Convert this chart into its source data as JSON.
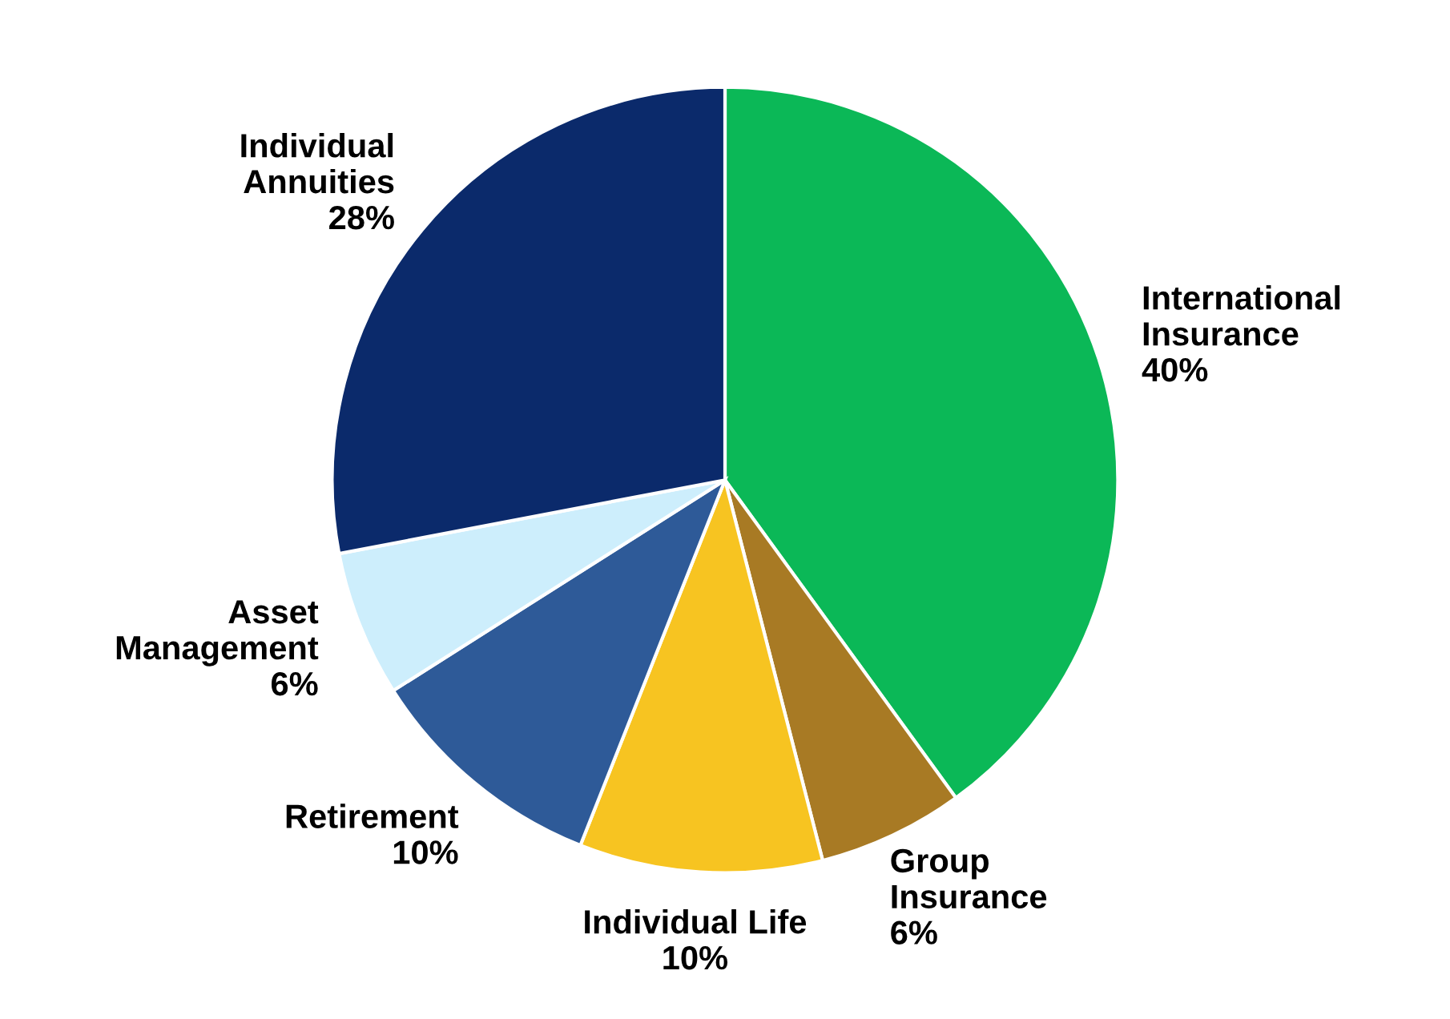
{
  "chart_data": {
    "type": "pie",
    "categories": [
      "International\nInsurance",
      "Group\nInsurance",
      "Individual Life",
      "Retirement",
      "Asset\nManagement",
      "Individual\nAnnuities"
    ],
    "values": [
      40,
      6,
      10,
      10,
      6,
      28
    ],
    "colors": [
      "#0bb857",
      "#a87a24",
      "#f7c421",
      "#2e5a98",
      "#cdeefc",
      "#0b2a6b"
    ],
    "value_labels": [
      "40%",
      "6%",
      "10%",
      "10%",
      "6%",
      "28%"
    ]
  }
}
